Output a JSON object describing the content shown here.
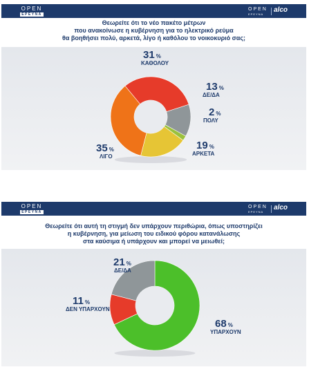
{
  "branding": {
    "logo_left_top": "OPEN",
    "logo_left_bottom": "ΕΡΕΥΝΑ",
    "logo_right_top": "OPEN",
    "logo_right_bottom": "ΕΡΕΥΝΑ",
    "partner": "alco",
    "header_color": "#1d3a6b"
  },
  "chart_data": [
    {
      "type": "pie",
      "title": "Θεωρείτε ότι το νέο πακέτο μέτρων που ανακοίνωσε η κυβέρνηση για το ηλεκτρικό ρεύμα θα βοηθήσει πολύ, αρκετά, λίγο ή καθόλου το νοικοκυριό σας;",
      "title_lines": [
        "Θεωρείτε ότι το νέο πακέτο μέτρων",
        "που ανακοίνωσε η κυβέρνηση για το ηλεκτρικό ρεύμα",
        "θα βοηθήσει πολύ, αρκετά, λίγο ή καθόλου το νοικοκυριό σας;"
      ],
      "unit": "%",
      "slices": [
        {
          "label": "ΔΕ/ΔΑ",
          "value": 13,
          "color": "#8f9699"
        },
        {
          "label": "ΠΟΛΥ",
          "value": 2,
          "color": "#9bc13c"
        },
        {
          "label": "ΑΡΚΕΤΑ",
          "value": 19,
          "color": "#e6c535"
        },
        {
          "label": "ΛΙΓΟ",
          "value": 35,
          "color": "#ef7318"
        },
        {
          "label": "ΚΑΘΟΛΟΥ",
          "value": 31,
          "color": "#e63b2a"
        }
      ]
    },
    {
      "type": "pie",
      "title": "Θεωρείτε ότι αυτή τη στιγμή δεν υπάρχουν περιθώρια, όπως υποστηρίζει η κυβέρνηση, για μείωση του ειδικού φόρου κατανάλωσης στα καύσιμα ή υπάρχουν και μπορεί να μειωθεί;",
      "title_lines": [
        "Θεωρείτε ότι αυτή τη στιγμή δεν υπάρχουν περιθώρια, όπως υποστηρίζει",
        "η κυβέρνηση, για μείωση του ειδικού φόρου κατανάλωσης",
        "στα καύσιμα ή υπάρχουν και μπορεί να μειωθεί;"
      ],
      "unit": "%",
      "slices": [
        {
          "label": "ΥΠΑΡΧΟΥΝ",
          "value": 68,
          "color": "#4cbf2a"
        },
        {
          "label": "ΔΕΝ ΥΠΑΡΧΟΥΝ",
          "value": 11,
          "color": "#e63b2a"
        },
        {
          "label": "ΔΕ/ΔΑ",
          "value": 21,
          "color": "#8f9699"
        }
      ]
    }
  ]
}
